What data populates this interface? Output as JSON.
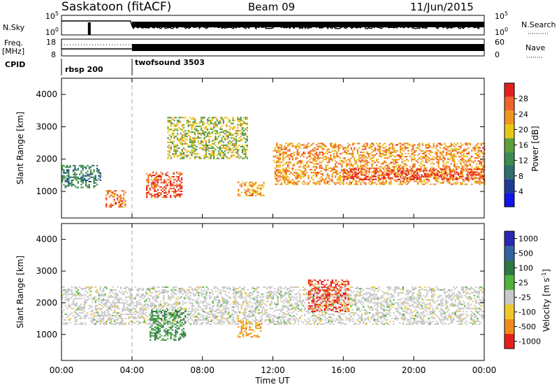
{
  "header": {
    "station": "Saskatoon (fitACF)",
    "beam": "Beam 09",
    "date": "11/Jun/2015"
  },
  "top_panels": {
    "nsky_label": "N.Sky",
    "nsky_ticks": [
      "10^5",
      "10^0"
    ],
    "nsearch_label": "N.Search",
    "nsearch_ticks": [
      "10^5",
      "10^0"
    ],
    "freq_label_1": "Freq.",
    "freq_label_2": "[MHz]",
    "freq_ticks": [
      "18",
      "8"
    ],
    "nave_label": "Nave",
    "nave_ticks": [
      "60",
      "0"
    ],
    "cpid_label": "CPID",
    "cpid_segments": [
      {
        "name": "rbsp 200",
        "start_hour": 0
      },
      {
        "name": "twofsound 3503",
        "start_hour": 4
      }
    ]
  },
  "x_axis": {
    "label": "Time UT",
    "ticks": [
      "00:00",
      "04:00",
      "08:00",
      "12:00",
      "16:00",
      "20:00",
      "00:00"
    ]
  },
  "chart_data": [
    {
      "type": "heatmap",
      "title": "Power",
      "xlabel": "Time UT",
      "ylabel": "Slant Range [km]",
      "x_unit": "hours UT",
      "xlim": [
        0,
        24
      ],
      "ylim": [
        180,
        4500
      ],
      "y_ticks": [
        1000,
        2000,
        3000,
        4000
      ],
      "colorbar": {
        "label": "Power [dB]",
        "ticks": [
          "4",
          "8",
          "12",
          "16",
          "20",
          "24",
          "28"
        ],
        "range": [
          0,
          30
        ],
        "colors": [
          "#1414e6",
          "#1e3c96",
          "#2e6e6e",
          "#3c8c50",
          "#5aa03c",
          "#e6c814",
          "#f0961e",
          "#f06428",
          "#e61e1e"
        ]
      },
      "features": [
        {
          "time_range": [
            0.0,
            2.2
          ],
          "range_km": [
            1100,
            1800
          ],
          "level": 10
        },
        {
          "time_range": [
            2.5,
            3.6
          ],
          "range_km": [
            500,
            1000
          ],
          "level": 24
        },
        {
          "time_range": [
            4.8,
            6.8
          ],
          "range_km": [
            800,
            1600
          ],
          "level": 26
        },
        {
          "time_range": [
            6.0,
            10.5
          ],
          "range_km": [
            2000,
            3300
          ],
          "level": 17
        },
        {
          "time_range": [
            10.0,
            11.5
          ],
          "range_km": [
            850,
            1300
          ],
          "level": 22
        },
        {
          "time_range": [
            12.0,
            24.0
          ],
          "range_km": [
            1200,
            2500
          ],
          "level": 22
        },
        {
          "time_range": [
            16.0,
            24.0
          ],
          "range_km": [
            1350,
            1700
          ],
          "level": 27
        }
      ]
    },
    {
      "type": "heatmap",
      "title": "Velocity",
      "xlabel": "Time UT",
      "ylabel": "Slant Range [km]",
      "x_unit": "hours UT",
      "xlim": [
        0,
        24
      ],
      "ylim": [
        180,
        4500
      ],
      "y_ticks": [
        1000,
        2000,
        3000,
        4000
      ],
      "colorbar": {
        "label": "Velocity [m s^-1]",
        "ticks": [
          "1000",
          "500",
          "100",
          "25",
          "-25",
          "-100",
          "-500",
          "-1000"
        ],
        "colors": [
          "#2828b4",
          "#3264a0",
          "#2e7846",
          "#50b43c",
          "#c8c8c8",
          "#f0c828",
          "#f08c1e",
          "#e61e1e"
        ]
      },
      "features": [
        {
          "time_range": [
            0.0,
            24.0
          ],
          "range_km": [
            1300,
            2500
          ],
          "level": "ground (25 to -25)"
        },
        {
          "time_range": [
            5.0,
            7.0
          ],
          "range_km": [
            800,
            1750
          ],
          "level": "100 to 500"
        },
        {
          "time_range": [
            10.0,
            11.3
          ],
          "range_km": [
            900,
            1400
          ],
          "level": "-100 to -500"
        },
        {
          "time_range": [
            14.0,
            16.3
          ],
          "range_km": [
            1700,
            2700
          ],
          "level": "-500 to -1000"
        }
      ]
    }
  ]
}
